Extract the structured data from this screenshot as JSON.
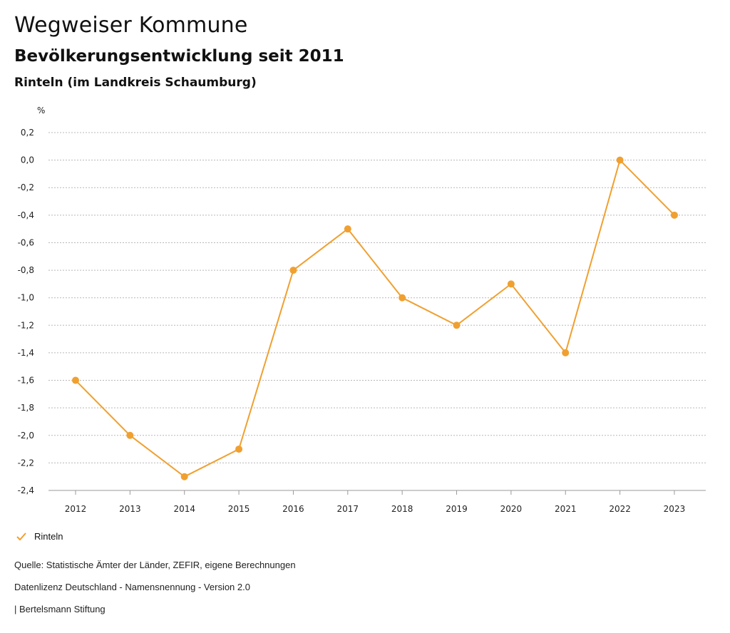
{
  "header": {
    "title": "Wegweiser Kommune",
    "subtitle": "Bevölkerungsentwicklung seit 2011",
    "region": "Rinteln (im Landkreis Schaumburg)"
  },
  "chart_data": {
    "type": "line",
    "title": "Bevölkerungsentwicklung seit 2011",
    "ylabel": "%",
    "xlabel": "",
    "ylim": [
      -2.4,
      0.2
    ],
    "yticks": [
      0.2,
      0.0,
      -0.2,
      -0.4,
      -0.6,
      -0.8,
      -1.0,
      -1.2,
      -1.4,
      -1.6,
      -1.8,
      -2.0,
      -2.2,
      -2.4
    ],
    "ytick_labels": [
      "0,2",
      "0,0",
      "-0,2",
      "-0,4",
      "-0,6",
      "-0,8",
      "-1,0",
      "-1,2",
      "-1,4",
      "-1,6",
      "-1,8",
      "-2,0",
      "-2,2",
      "-2,4"
    ],
    "grid": true,
    "categories": [
      "2012",
      "2013",
      "2014",
      "2015",
      "2016",
      "2017",
      "2018",
      "2019",
      "2020",
      "2021",
      "2022",
      "2023"
    ],
    "series": [
      {
        "name": "Rinteln",
        "color": "#f0a030",
        "values": [
          -1.6,
          -2.0,
          -2.3,
          -2.1,
          -0.8,
          -0.5,
          -1.0,
          -1.2,
          -0.9,
          -1.4,
          0.0,
          -0.4
        ]
      }
    ],
    "legend_position": "bottom-left"
  },
  "legend": {
    "label": "Rinteln",
    "icon": "check-icon"
  },
  "footer": {
    "source": "Quelle: Statistische Ämter der Länder, ZEFIR, eigene Berechnungen",
    "license": "Datenlizenz Deutschland - Namensnennung - Version 2.0",
    "publisher": "| Bertelsmann Stiftung"
  }
}
